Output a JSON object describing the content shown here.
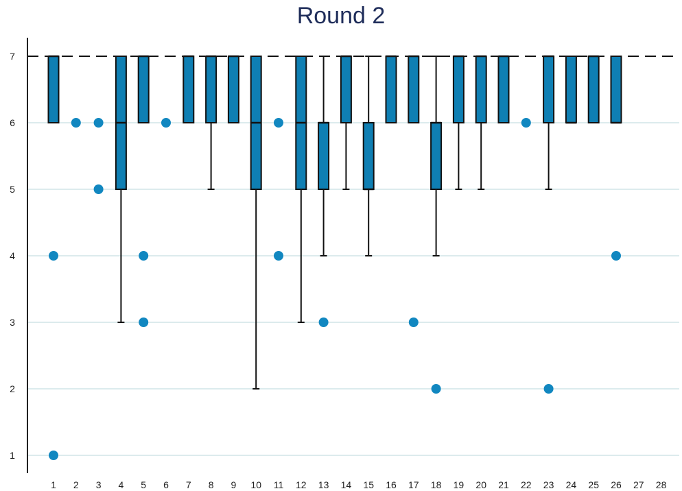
{
  "chart_data": {
    "type": "boxplot",
    "title": "Round 2",
    "xlabel": "",
    "ylabel": "",
    "ylim": [
      0.75,
      7.35
    ],
    "yticks": [
      1,
      2,
      3,
      4,
      5,
      6,
      7
    ],
    "grid": true,
    "categories": [
      "1",
      "2",
      "3",
      "4",
      "5",
      "6",
      "7",
      "8",
      "9",
      "10",
      "11",
      "12",
      "13",
      "14",
      "15",
      "16",
      "17",
      "18",
      "19",
      "20",
      "21",
      "22",
      "23",
      "24",
      "25",
      "26",
      "27",
      "28"
    ],
    "box_color": "#0f7fb3",
    "outlier_color": "#1187c0",
    "grid_color": "#dcebed",
    "boxes": [
      {
        "x": "1",
        "whisker_low": 6,
        "q1": 6,
        "median": 7,
        "q3": 7,
        "whisker_high": 7,
        "outliers": [
          4,
          1
        ]
      },
      {
        "x": "2",
        "whisker_low": 7,
        "q1": 7,
        "median": 7,
        "q3": 7,
        "whisker_high": 7,
        "outliers": [
          6
        ]
      },
      {
        "x": "3",
        "whisker_low": 7,
        "q1": 7,
        "median": 7,
        "q3": 7,
        "whisker_high": 7,
        "outliers": [
          6,
          5
        ]
      },
      {
        "x": "4",
        "whisker_low": 3,
        "q1": 5,
        "median": 6,
        "q3": 7,
        "whisker_high": 7,
        "outliers": []
      },
      {
        "x": "5",
        "whisker_low": 6,
        "q1": 6,
        "median": 7,
        "q3": 7,
        "whisker_high": 7,
        "outliers": [
          4,
          3
        ]
      },
      {
        "x": "6",
        "whisker_low": 7,
        "q1": 7,
        "median": 7,
        "q3": 7,
        "whisker_high": 7,
        "outliers": [
          6
        ]
      },
      {
        "x": "7",
        "whisker_low": 6,
        "q1": 6,
        "median": 7,
        "q3": 7,
        "whisker_high": 7,
        "outliers": []
      },
      {
        "x": "8",
        "whisker_low": 5,
        "q1": 6,
        "median": 7,
        "q3": 7,
        "whisker_high": 7,
        "outliers": []
      },
      {
        "x": "9",
        "whisker_low": 6,
        "q1": 6,
        "median": 7,
        "q3": 7,
        "whisker_high": 7,
        "outliers": []
      },
      {
        "x": "10",
        "whisker_low": 2,
        "q1": 5,
        "median": 6,
        "q3": 7,
        "whisker_high": 7,
        "outliers": []
      },
      {
        "x": "11",
        "whisker_low": 7,
        "q1": 7,
        "median": 7,
        "q3": 7,
        "whisker_high": 7,
        "outliers": [
          6,
          4
        ]
      },
      {
        "x": "12",
        "whisker_low": 3,
        "q1": 5,
        "median": 6,
        "q3": 7,
        "whisker_high": 7,
        "outliers": []
      },
      {
        "x": "13",
        "whisker_low": 4,
        "q1": 5,
        "median": 6,
        "q3": 6,
        "whisker_high": 7,
        "outliers": [
          3
        ]
      },
      {
        "x": "14",
        "whisker_low": 5,
        "q1": 6,
        "median": 7,
        "q3": 7,
        "whisker_high": 7,
        "outliers": []
      },
      {
        "x": "15",
        "whisker_low": 4,
        "q1": 5,
        "median": 5,
        "q3": 6,
        "whisker_high": 7,
        "outliers": []
      },
      {
        "x": "16",
        "whisker_low": 6,
        "q1": 6,
        "median": 7,
        "q3": 7,
        "whisker_high": 7,
        "outliers": []
      },
      {
        "x": "17",
        "whisker_low": 6,
        "q1": 6,
        "median": 7,
        "q3": 7,
        "whisker_high": 7,
        "outliers": [
          3
        ]
      },
      {
        "x": "18",
        "whisker_low": 4,
        "q1": 5,
        "median": 6,
        "q3": 6,
        "whisker_high": 7,
        "outliers": [
          2
        ]
      },
      {
        "x": "19",
        "whisker_low": 5,
        "q1": 6,
        "median": 7,
        "q3": 7,
        "whisker_high": 7,
        "outliers": []
      },
      {
        "x": "20",
        "whisker_low": 5,
        "q1": 6,
        "median": 7,
        "q3": 7,
        "whisker_high": 7,
        "outliers": []
      },
      {
        "x": "21",
        "whisker_low": 6,
        "q1": 6,
        "median": 7,
        "q3": 7,
        "whisker_high": 7,
        "outliers": []
      },
      {
        "x": "22",
        "whisker_low": 7,
        "q1": 7,
        "median": 7,
        "q3": 7,
        "whisker_high": 7,
        "outliers": [
          6
        ]
      },
      {
        "x": "23",
        "whisker_low": 5,
        "q1": 6,
        "median": 7,
        "q3": 7,
        "whisker_high": 7,
        "outliers": [
          2
        ]
      },
      {
        "x": "24",
        "whisker_low": 6,
        "q1": 6,
        "median": 6,
        "q3": 7,
        "whisker_high": 7,
        "outliers": []
      },
      {
        "x": "25",
        "whisker_low": 6,
        "q1": 6,
        "median": 7,
        "q3": 7,
        "whisker_high": 7,
        "outliers": []
      },
      {
        "x": "26",
        "whisker_low": 6,
        "q1": 6,
        "median": 6,
        "q3": 7,
        "whisker_high": 7,
        "outliers": [
          4
        ]
      },
      {
        "x": "27",
        "whisker_low": 7,
        "q1": 7,
        "median": 7,
        "q3": 7,
        "whisker_high": 7,
        "outliers": []
      },
      {
        "x": "28",
        "whisker_low": 7,
        "q1": 7,
        "median": 7,
        "q3": 7,
        "whisker_high": 7,
        "outliers": []
      }
    ]
  }
}
